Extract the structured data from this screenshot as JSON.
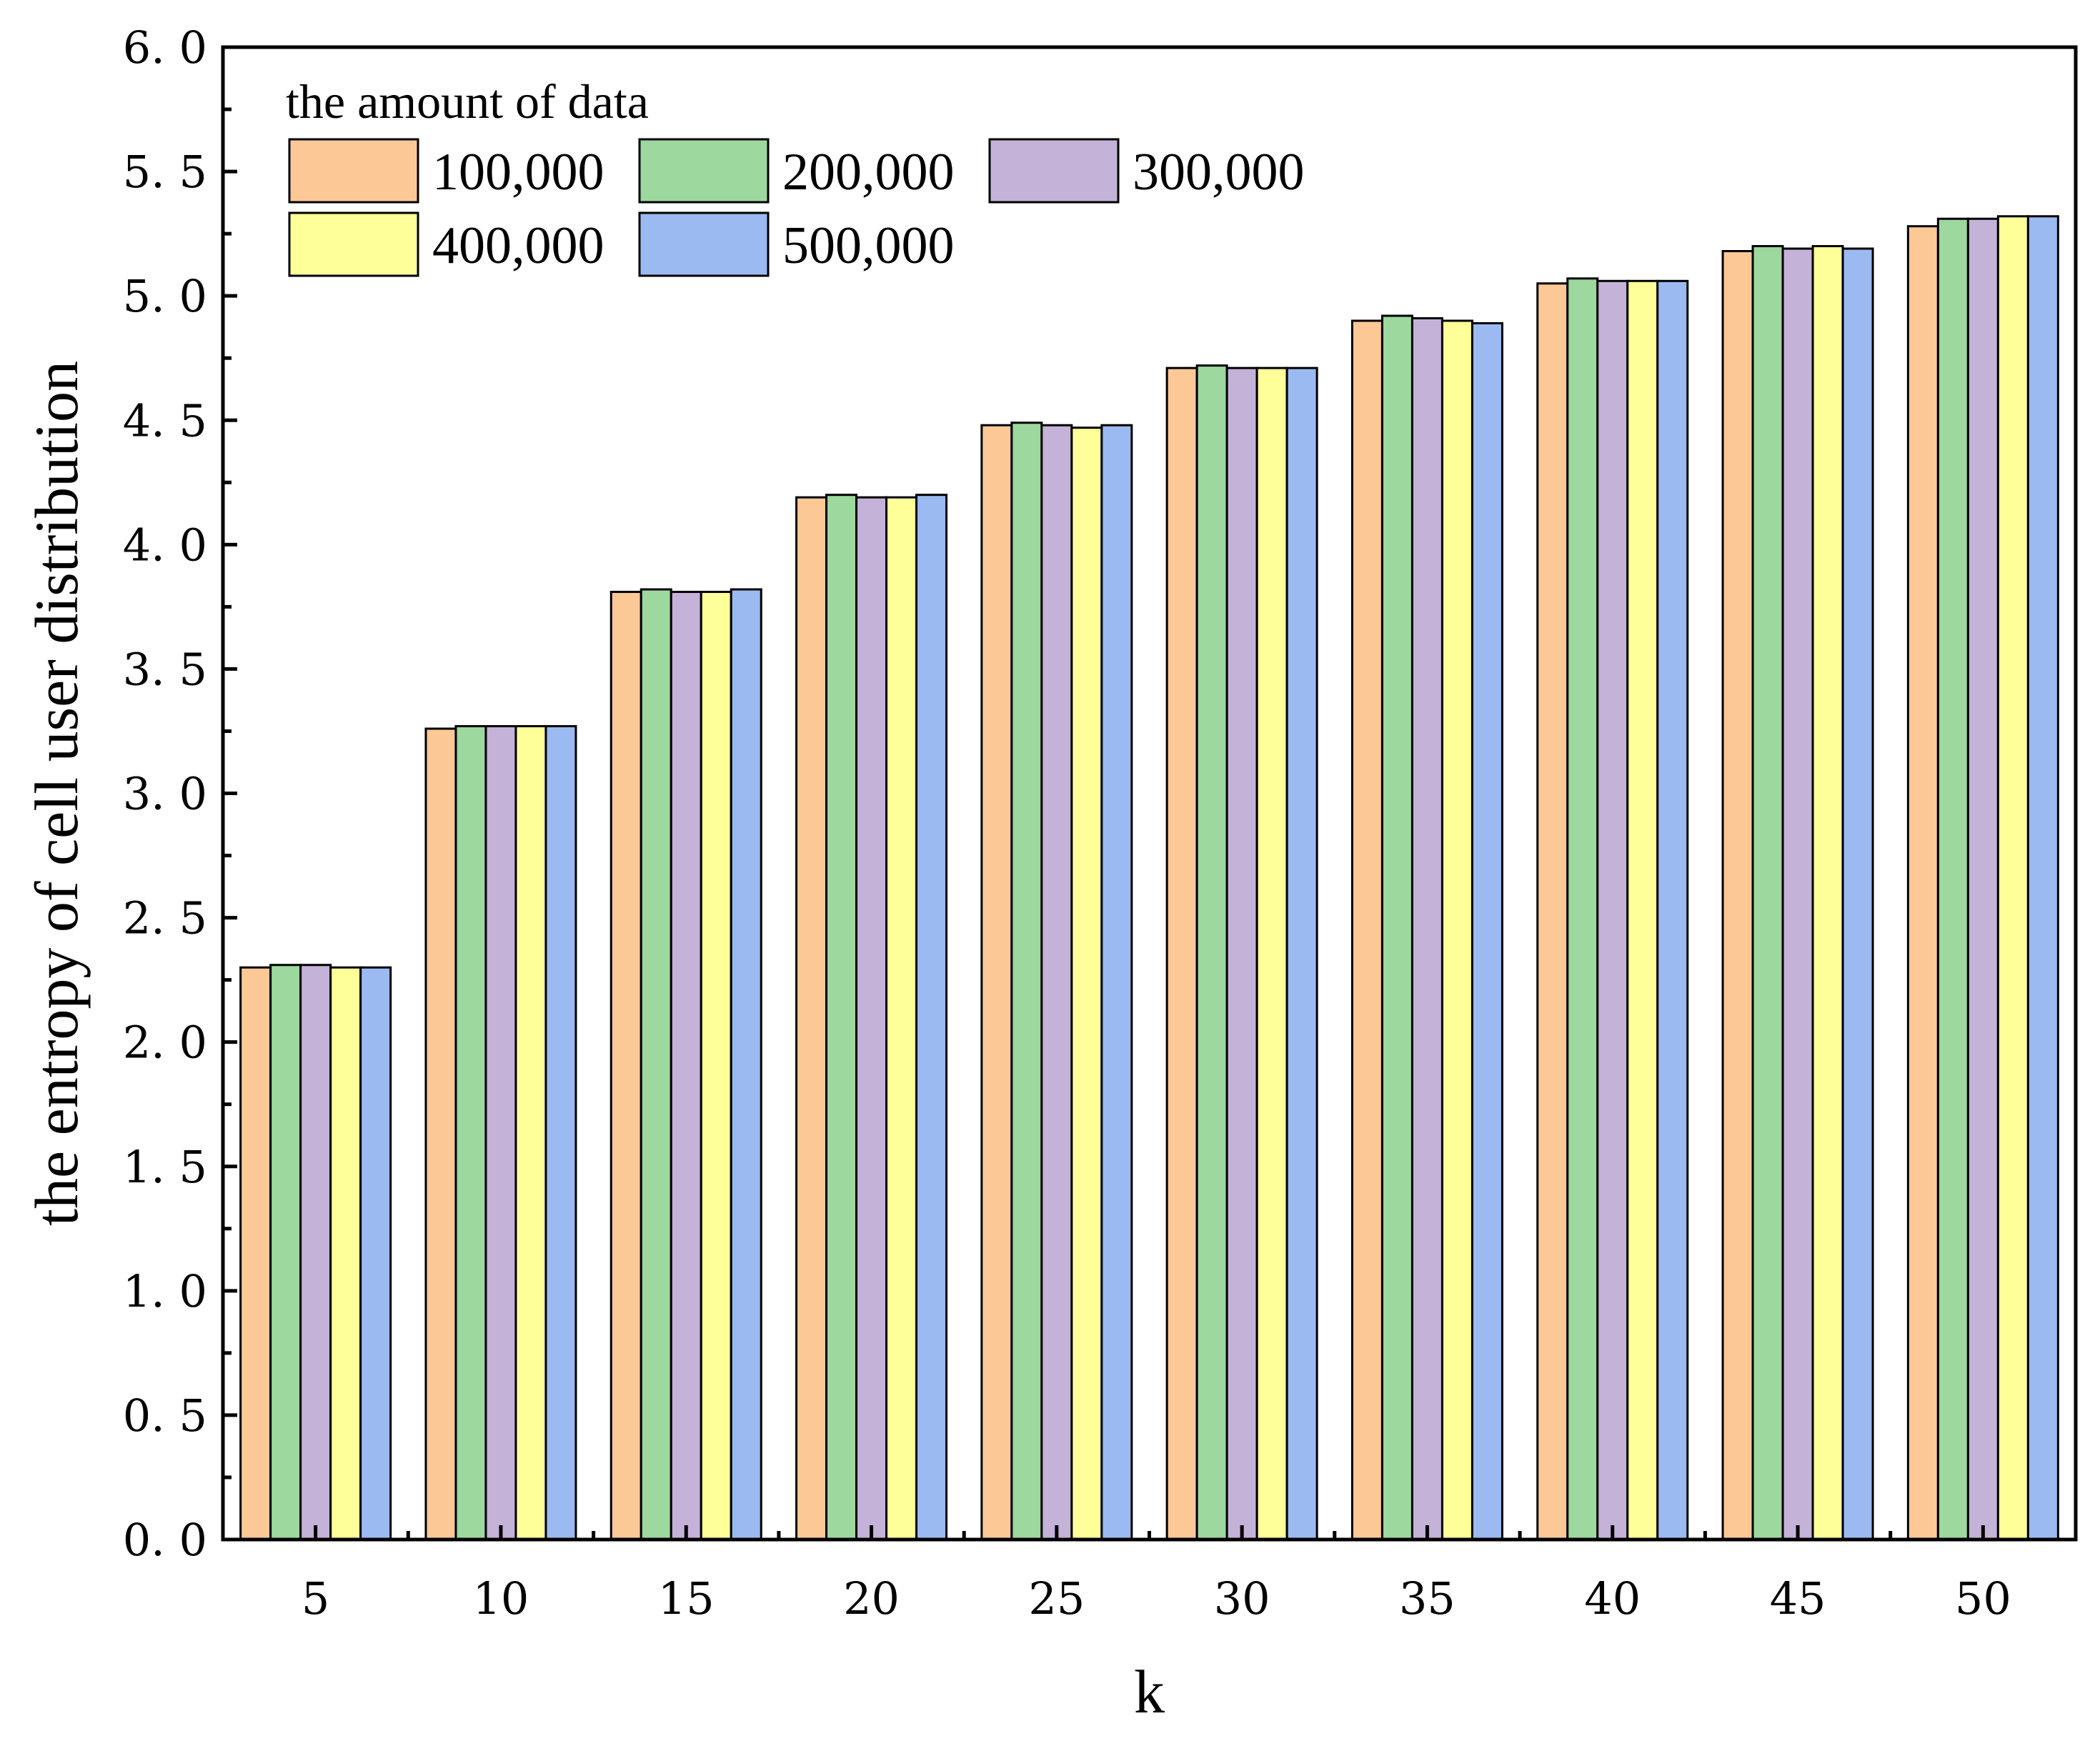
{
  "chart_data": {
    "type": "bar",
    "title": "",
    "xlabel": "k",
    "ylabel": "the entropy of cell user distribution",
    "ylim": [
      0,
      6
    ],
    "yticks": [
      "0. 0",
      "0. 5",
      "1. 0",
      "1. 5",
      "2. 0",
      "2. 5",
      "3. 0",
      "3. 5",
      "4. 0",
      "4. 5",
      "5. 0",
      "5. 5",
      "6. 0"
    ],
    "categories": [
      "5",
      "10",
      "15",
      "20",
      "25",
      "30",
      "35",
      "40",
      "45",
      "50"
    ],
    "legend": {
      "title": "the amount of data",
      "position": "top-left"
    },
    "series": [
      {
        "name": "100,000",
        "color": "#FBC896",
        "values": [
          2.3,
          3.26,
          3.81,
          4.19,
          4.48,
          4.71,
          4.9,
          5.05,
          5.18,
          5.28
        ]
      },
      {
        "name": "200,000",
        "color": "#9DD89F",
        "values": [
          2.31,
          3.27,
          3.82,
          4.2,
          4.49,
          4.72,
          4.92,
          5.07,
          5.2,
          5.31
        ]
      },
      {
        "name": "300,000",
        "color": "#C4B2D8",
        "values": [
          2.31,
          3.27,
          3.81,
          4.19,
          4.48,
          4.71,
          4.91,
          5.06,
          5.19,
          5.31
        ]
      },
      {
        "name": "400,000",
        "color": "#FFFF99",
        "values": [
          2.3,
          3.27,
          3.81,
          4.19,
          4.47,
          4.71,
          4.9,
          5.06,
          5.2,
          5.32
        ]
      },
      {
        "name": "500,000",
        "color": "#9BBAF2",
        "values": [
          2.3,
          3.27,
          3.82,
          4.2,
          4.48,
          4.71,
          4.89,
          5.06,
          5.19,
          5.32
        ]
      }
    ]
  }
}
